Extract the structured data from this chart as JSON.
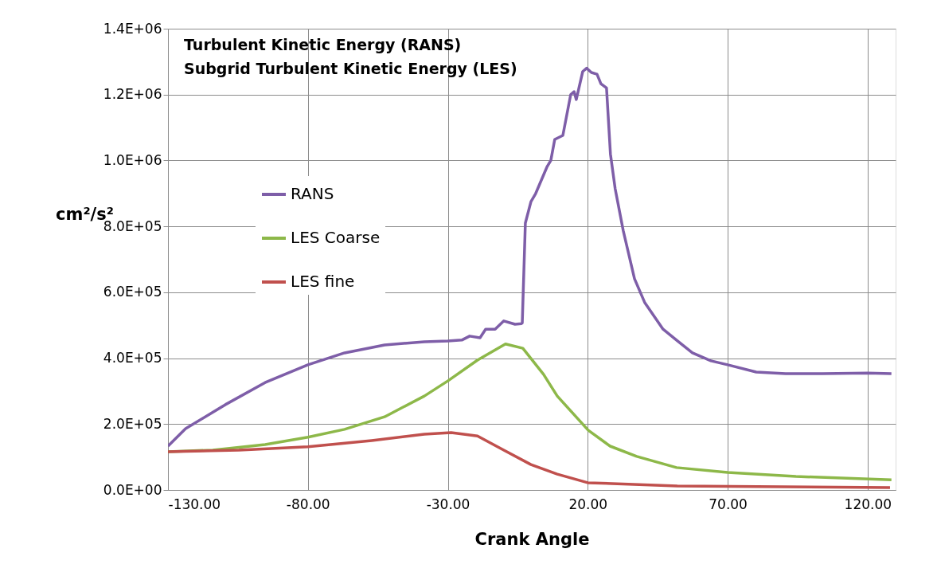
{
  "chart_data": {
    "type": "line",
    "title": "Turbulent Kinetic Energy (RANS)",
    "subtitle": "Subgrid Turbulent Kinetic Energy (LES)",
    "xlabel": "Crank Angle",
    "ylabel": "cm²/s²",
    "xlim": [
      -130,
      130
    ],
    "xticks": [
      {
        "value": -130,
        "label": "-130.00"
      },
      {
        "value": -80,
        "label": "-80.00"
      },
      {
        "value": -30,
        "label": "-30.00"
      },
      {
        "value": 20,
        "label": "20.00"
      },
      {
        "value": 70,
        "label": "70.00"
      },
      {
        "value": 120,
        "label": "120.00"
      }
    ],
    "ylim": [
      0,
      1400000
    ],
    "yticks": [
      {
        "value": 0,
        "label": "0.0E+00"
      },
      {
        "value": 200000,
        "label": "2.0E+05"
      },
      {
        "value": 400000,
        "label": "4.0E+05"
      },
      {
        "value": 600000,
        "label": "6.0E+05"
      },
      {
        "value": 800000,
        "label": "8.0E+05"
      },
      {
        "value": 1000000,
        "label": "1.0E+06"
      },
      {
        "value": 1200000,
        "label": "1.2E+06"
      },
      {
        "value": 1400000,
        "label": "1.4E+06"
      }
    ],
    "grid": true,
    "legend": "left",
    "line_style": "solid",
    "marker": "none",
    "series": [
      {
        "name": "RANS",
        "color": "#7e5ea8",
        "x": [
          -130,
          -123.7,
          -109.5,
          -95.3,
          -80,
          -66.9,
          -52.6,
          -38.4,
          -30,
          -25,
          -22.2,
          -18.5,
          -16.5,
          -13.1,
          -10,
          -6,
          -3.7,
          -3.4,
          -2.3,
          -0.3,
          1.4,
          5.4,
          6.8,
          8.2,
          11.1,
          13.9,
          15.1,
          15.9,
          18.2,
          19.6,
          21.3,
          23.3,
          24.7,
          26.7,
          28.1,
          29.8,
          32.7,
          36.7,
          40.4,
          46.9,
          51.7,
          57.4,
          64,
          70,
          80.2,
          90.7,
          103.8,
          120,
          128.5
        ],
        "values": [
          133000,
          186000,
          259000,
          326000,
          380000,
          416000,
          440000,
          450000,
          452000,
          455000,
          467000,
          462000,
          488000,
          488000,
          513000,
          503000,
          505000,
          507000,
          810000,
          875000,
          900000,
          980000,
          1000000,
          1064000,
          1076000,
          1200000,
          1209000,
          1185000,
          1270000,
          1280000,
          1267000,
          1262000,
          1233000,
          1220000,
          1020000,
          914000,
          786000,
          641000,
          568000,
          488000,
          455000,
          416000,
          392000,
          380000,
          358000,
          353000,
          353000,
          355000,
          353000
        ]
      },
      {
        "name": "LES Coarse",
        "color": "#8db849",
        "x": [
          -130,
          -114,
          -95.3,
          -80,
          -66.9,
          -52.6,
          -38.4,
          -30,
          -19.4,
          -9.4,
          -3.2,
          4.2,
          9.1,
          20.2,
          28,
          37.5,
          51.7,
          70,
          94.4,
          128.5
        ],
        "values": [
          116000,
          121000,
          138000,
          160000,
          184000,
          222000,
          285000,
          331000,
          394000,
          443000,
          430000,
          351000,
          285000,
          181000,
          133000,
          102000,
          68000,
          53000,
          41000,
          31000
        ]
      },
      {
        "name": "LES fine",
        "color": "#c0504d",
        "x": [
          -130,
          -104.7,
          -80,
          -57.2,
          -38.4,
          -28.8,
          -19.4,
          -10,
          -0.3,
          9.1,
          20,
          52,
          128
        ],
        "values": [
          116000,
          121000,
          131000,
          150000,
          169000,
          174000,
          164000,
          121000,
          77000,
          48000,
          22000,
          12000,
          7000
        ]
      }
    ]
  }
}
